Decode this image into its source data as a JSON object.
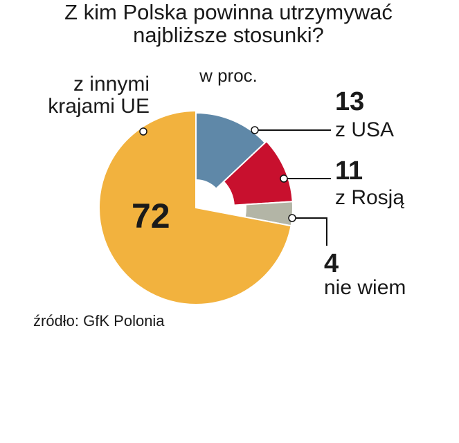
{
  "chart_data": {
    "type": "pie",
    "title": "Z kim Polska powinna utrzymywać najbliższe stosunki?",
    "subtitle": "w proc.",
    "categories": [
      "z USA",
      "z Rosją",
      "nie wiem",
      "z innymi krajami UE"
    ],
    "values": [
      13,
      11,
      4,
      72
    ],
    "colors": [
      "#5f88a8",
      "#c8102e",
      "#b3b5a6",
      "#f2b23e"
    ],
    "source": "źródło: GfK Polonia"
  }
}
